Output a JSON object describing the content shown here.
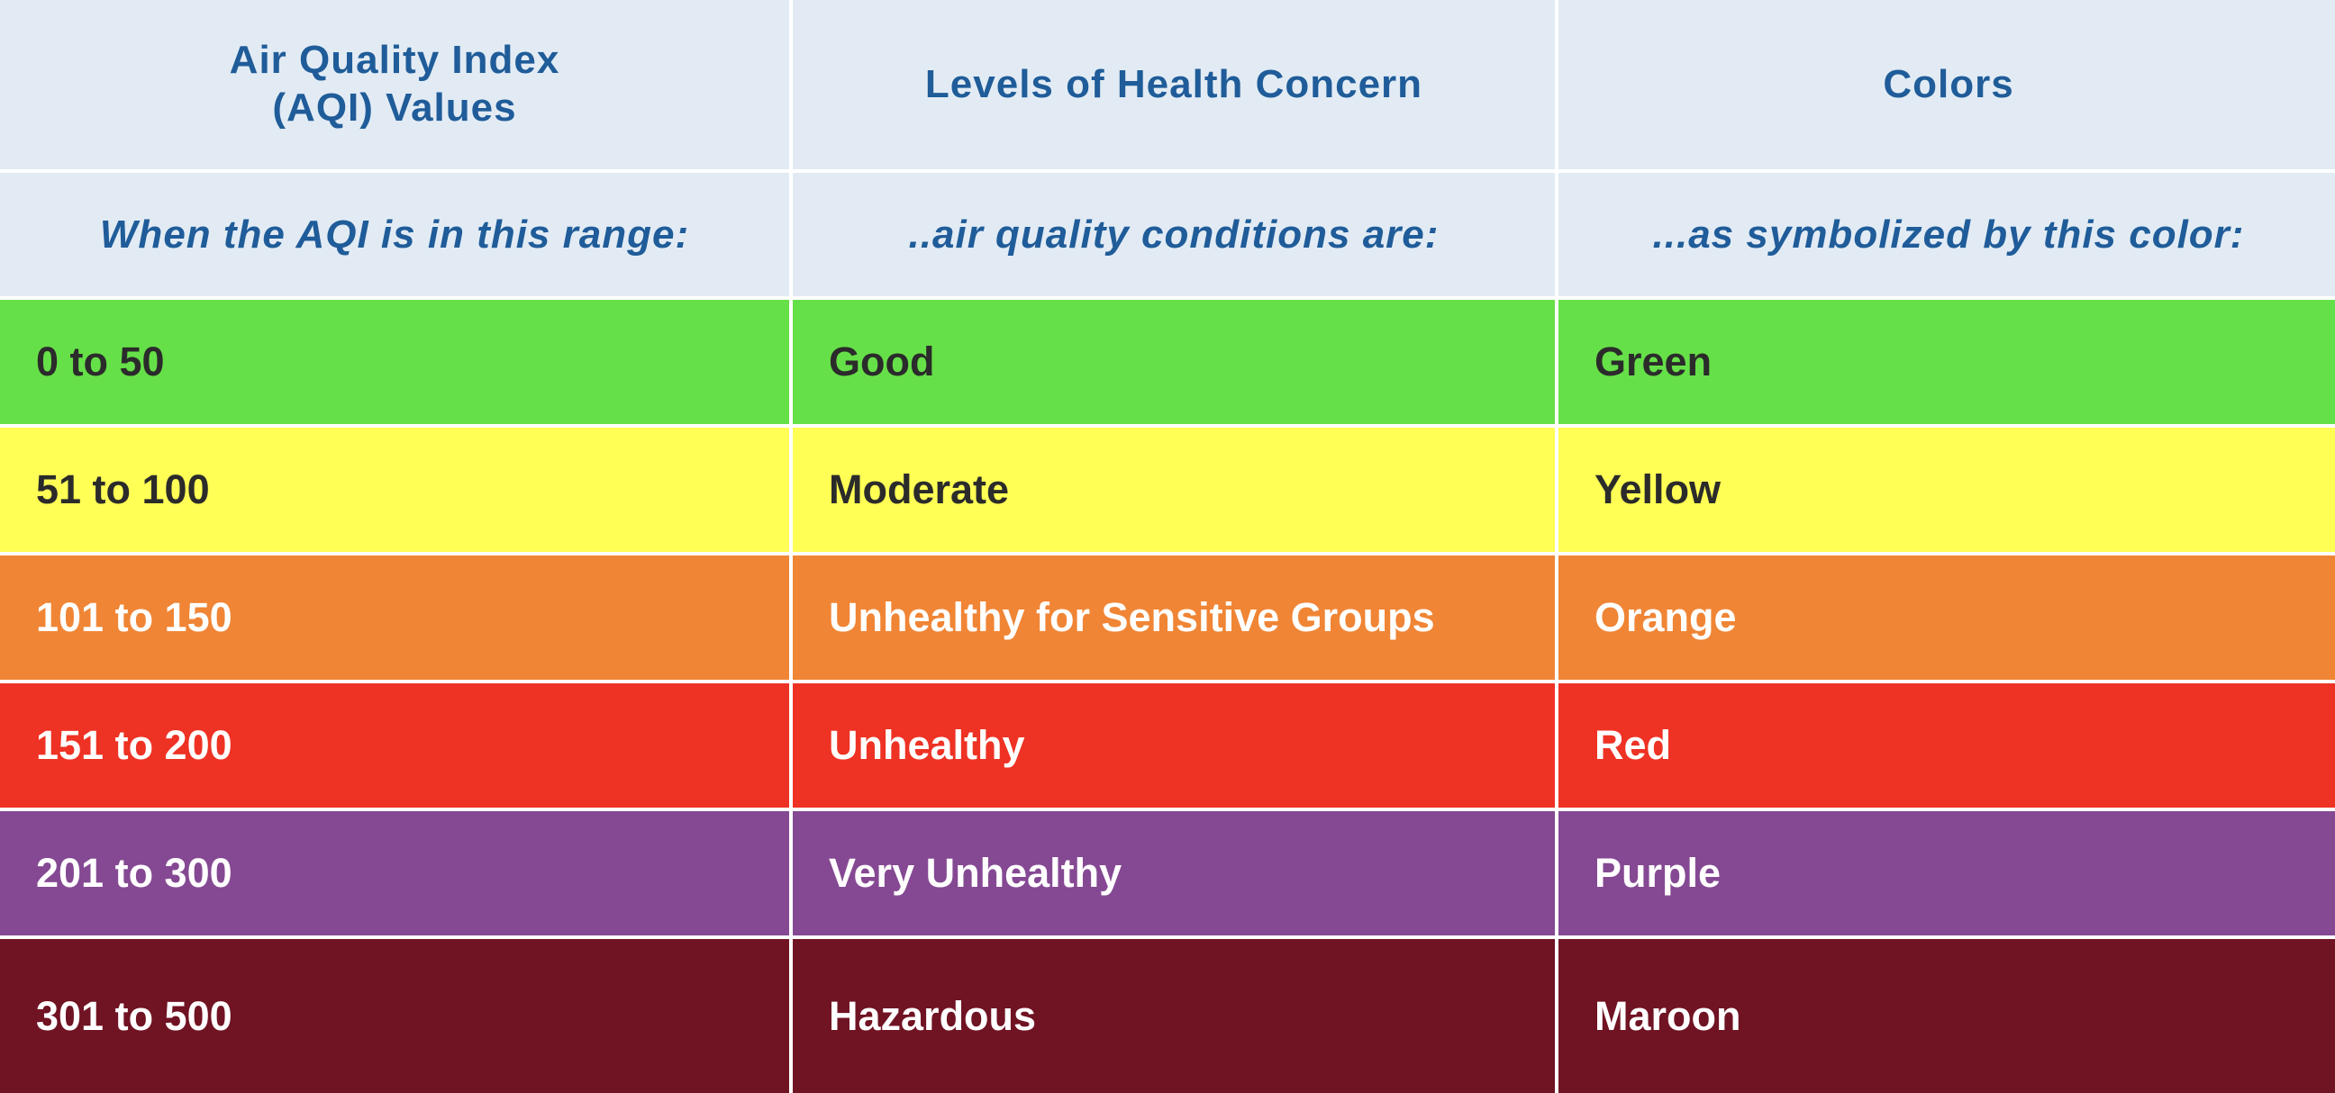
{
  "table": {
    "header": [
      "Air Quality Index\n(AQI) Values",
      "Levels of Health Concern",
      "Colors"
    ],
    "subheader": [
      "When the AQI is in this range:",
      "..air quality conditions are:",
      "...as symbolized by this color:"
    ],
    "rows": [
      [
        "0 to 50",
        "Good",
        "Green"
      ],
      [
        "51 to 100",
        "Moderate",
        "Yellow"
      ],
      [
        "101 to 150",
        "Unhealthy for Sensitive Groups",
        "Orange"
      ],
      [
        "151 to 200",
        "Unhealthy",
        "Red"
      ],
      [
        "201 to 300",
        "Very Unhealthy",
        "Purple"
      ],
      [
        "301 to 500",
        "Hazardous",
        "Maroon"
      ]
    ],
    "row_colors": [
      "#66e048",
      "#ffff55",
      "#f08535",
      "#ee3224",
      "#854993",
      "#701323"
    ],
    "text_colors": [
      "#2b2b2b",
      "#2b2b2b",
      "#ffffff",
      "#ffffff",
      "#ffffff",
      "#ffffff"
    ]
  }
}
